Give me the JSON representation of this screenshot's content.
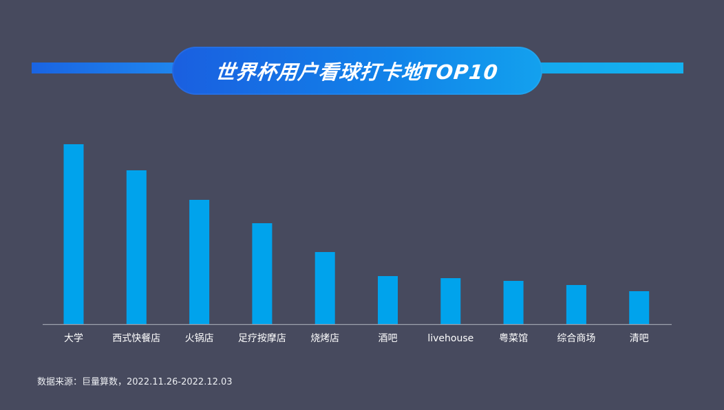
{
  "header": {
    "title": "世界杯用户看球打卡地TOP10"
  },
  "chart_data": {
    "type": "bar",
    "categories": [
      "大学",
      "西式快餐店",
      "火锅店",
      "足疗按摩店",
      "烧烤店",
      "酒吧",
      "livehouse",
      "粤菜馆",
      "综合商场",
      "清吧"
    ],
    "values": [
      262,
      224,
      181,
      147,
      105,
      70,
      67,
      63,
      57,
      48
    ],
    "ylim": [
      0,
      270
    ],
    "grid": false,
    "bar_color": "#00a3ec",
    "axis_color": "#9ea2ae",
    "label_color": "#ffffff"
  },
  "footer": {
    "source": "数据来源：巨量算数，2022.11.26-2022.12.03"
  }
}
